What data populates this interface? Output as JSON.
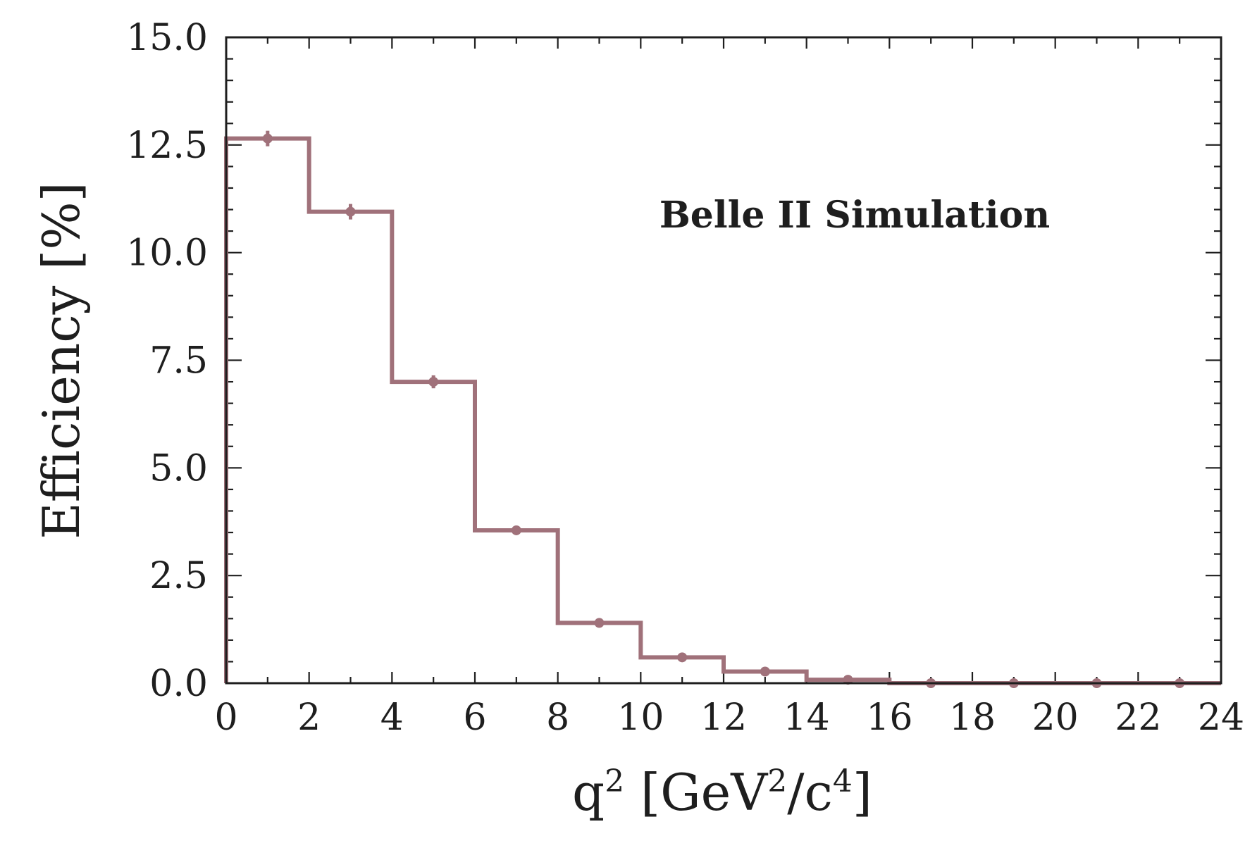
{
  "chart_data": {
    "type": "histogram",
    "x": [
      1,
      3,
      5,
      7,
      9,
      11,
      13,
      15,
      17,
      19,
      21,
      23
    ],
    "bin_edges": [
      0,
      2,
      4,
      6,
      8,
      10,
      12,
      14,
      16,
      18,
      20,
      22,
      24
    ],
    "values": [
      12.65,
      10.95,
      7.0,
      3.55,
      1.4,
      0.6,
      0.27,
      0.08,
      0.0,
      0.0,
      0.0,
      0.0
    ],
    "errors": [
      0.18,
      0.18,
      0.15,
      0.1,
      0.05,
      0.03,
      0.02,
      0.01,
      0.0,
      0.0,
      0.0,
      0.0
    ],
    "xlabel": {
      "base": "q",
      "sup": "2",
      "rest": " [GeV",
      "sup2": "2",
      "mid": "/c",
      "sup3": "4",
      "end": "]"
    },
    "ylabel": "Efficiency [%]",
    "xlim": [
      0,
      24
    ],
    "ylim": [
      0,
      15
    ],
    "xticks": [
      "0",
      "2",
      "4",
      "6",
      "8",
      "10",
      "12",
      "14",
      "16",
      "18",
      "20",
      "22",
      "24"
    ],
    "yticks": [
      "0.0",
      "2.5",
      "5.0",
      "7.5",
      "10.0",
      "12.5",
      "15.0"
    ],
    "annotation": "Belle II Simulation",
    "color": "#a0717a",
    "grid": false
  }
}
